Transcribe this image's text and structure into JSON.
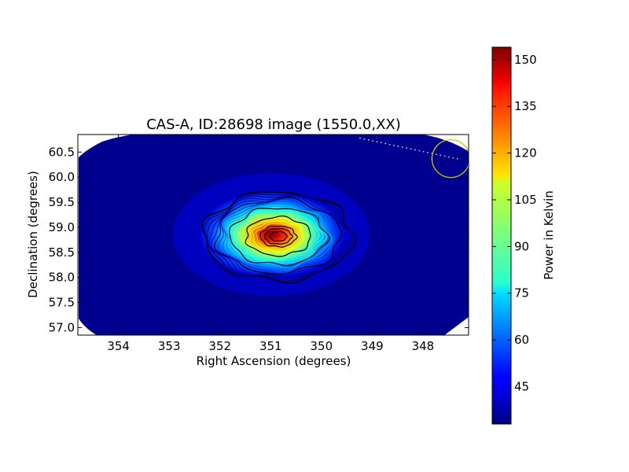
{
  "chart_data": {
    "type": "heatmap",
    "title": "CAS-A, ID:28698 image (1550.0,XX)",
    "xlabel": "Right Ascension (degrees)",
    "ylabel": "Declination (degrees)",
    "xlim": [
      354.8,
      347.1
    ],
    "ylim": [
      56.85,
      60.85
    ],
    "x_ticks": [
      354,
      353,
      352,
      351,
      350,
      349,
      348
    ],
    "y_ticks": [
      57.0,
      57.5,
      58.0,
      58.5,
      59.0,
      59.5,
      60.0,
      60.5
    ],
    "x_tick_labels": [
      "354",
      "353",
      "352",
      "351",
      "350",
      "349",
      "348"
    ],
    "y_tick_labels": [
      "57.0",
      "57.5",
      "58.0",
      "58.5",
      "59.0",
      "59.5",
      "60.0",
      "60.5"
    ],
    "colormap": "jet",
    "colorbar": {
      "label": "Power in Kelvin",
      "range": [
        33,
        154
      ],
      "ticks": [
        45,
        60,
        75,
        90,
        105,
        120,
        135,
        150
      ],
      "tick_labels": [
        "45",
        "60",
        "75",
        "90",
        "105",
        "120",
        "135",
        "150"
      ]
    },
    "source": {
      "ra": 350.85,
      "dec": 58.82,
      "peak": 154,
      "background": 40
    },
    "contour_levels": [
      45,
      50,
      55,
      60,
      65,
      70,
      75,
      80,
      85,
      90,
      95,
      100,
      105,
      110,
      115,
      120,
      125,
      130,
      135,
      140,
      145,
      150
    ],
    "marker_circle": {
      "ra": 347.45,
      "dec": 60.37,
      "color": "#c8c800"
    },
    "dotted_track": {
      "from": {
        "ra": 349.25,
        "dec": 60.78
      },
      "to": {
        "ra": 347.25,
        "dec": 60.35
      }
    },
    "grid": false
  }
}
